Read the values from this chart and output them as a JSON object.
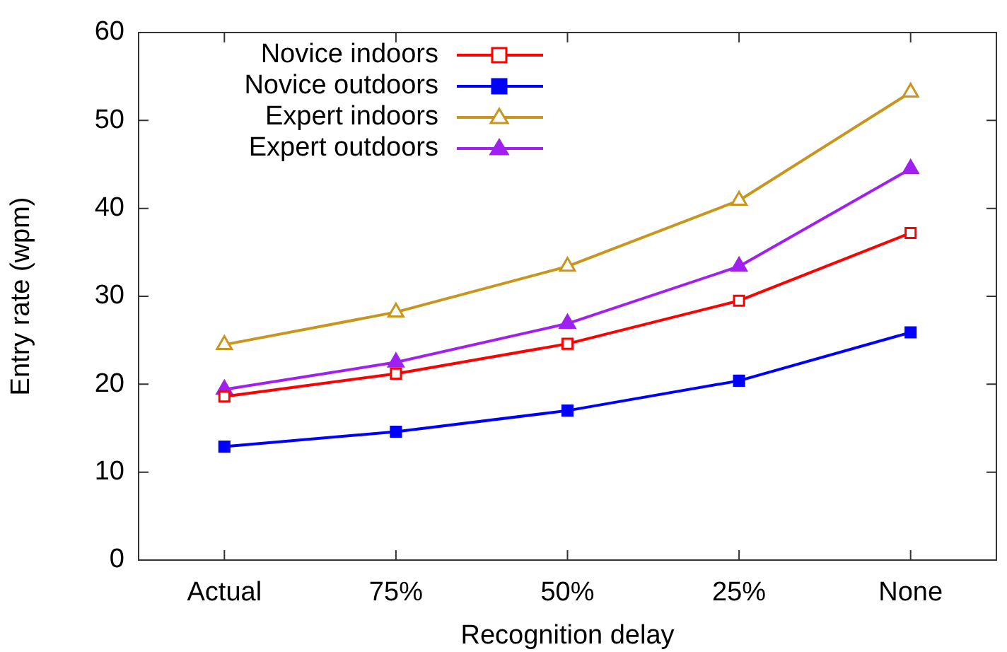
{
  "chart_data": {
    "type": "line",
    "xlabel": "Recognition delay",
    "ylabel": "Entry rate (wpm)",
    "categories": [
      "Actual",
      "75%",
      "50%",
      "25%",
      "None"
    ],
    "ylim": [
      0,
      60
    ],
    "yticks": [
      0,
      10,
      20,
      30,
      40,
      50,
      60
    ],
    "grid": false,
    "legend": "top left",
    "line_style": "solid",
    "series": [
      {
        "name": "Novice indoors",
        "color": "#ff0000",
        "marker": "square",
        "values": [
          18.6,
          21.2,
          24.6,
          29.5,
          37.2
        ]
      },
      {
        "name": "Novice outdoors",
        "color": "#0000ff",
        "marker": "square",
        "values": [
          12.9,
          14.6,
          17.0,
          20.4,
          25.9
        ]
      },
      {
        "name": "Expert indoors",
        "color": "#c8961e",
        "marker": "triangle",
        "values": [
          24.5,
          28.2,
          33.4,
          40.9,
          53.2
        ]
      },
      {
        "name": "Expert outdoors",
        "color": "#a020f0",
        "marker": "triangle",
        "values": [
          19.4,
          22.5,
          26.9,
          33.4,
          44.5
        ]
      }
    ]
  }
}
